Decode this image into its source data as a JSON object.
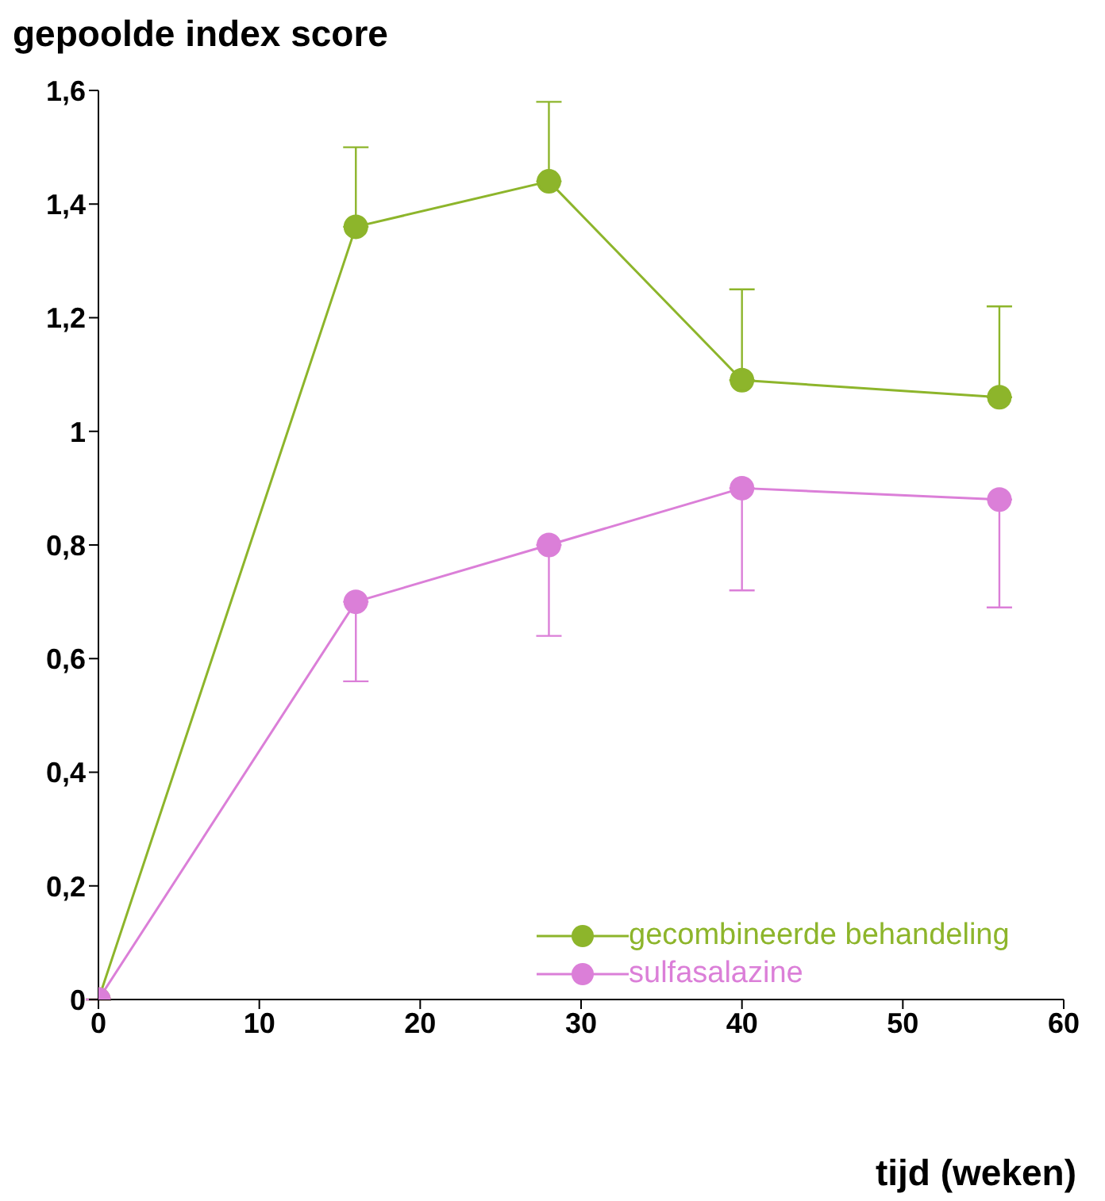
{
  "chart_data": {
    "type": "line",
    "ylabel": "gepoolde index score",
    "xlabel": "tijd (weken)",
    "x": [
      0,
      16,
      28,
      40,
      56
    ],
    "series": [
      {
        "name": "gecombineerde behandeling",
        "color": "#8db52b",
        "values": [
          0,
          1.36,
          1.44,
          1.09,
          1.06
        ],
        "errors": [
          null,
          [
            1.36,
            1.5
          ],
          [
            1.44,
            1.58
          ],
          [
            1.09,
            1.25
          ],
          [
            1.06,
            1.22
          ]
        ]
      },
      {
        "name": "sulfasalazine",
        "color": "#db7fd8",
        "values": [
          0,
          0.7,
          0.8,
          0.9,
          0.88
        ],
        "errors": [
          null,
          [
            0.56,
            0.7
          ],
          [
            0.64,
            0.8
          ],
          [
            0.72,
            0.9
          ],
          [
            0.69,
            0.88
          ]
        ]
      }
    ],
    "xlim": [
      0,
      60
    ],
    "xticks": [
      0,
      10,
      20,
      30,
      40,
      50,
      60
    ],
    "ylim": [
      0,
      1.6
    ],
    "yticks": [
      0,
      {
        "value": 0.2,
        "label": "0,2"
      },
      {
        "value": 0.4,
        "label": "0,4"
      },
      {
        "value": 0.6,
        "label": "0,6"
      },
      {
        "value": 0.8,
        "label": "0,8"
      },
      1,
      {
        "value": 1.2,
        "label": "1,2"
      },
      {
        "value": 1.4,
        "label": "1,4"
      },
      {
        "value": 1.6,
        "label": "1,6"
      }
    ],
    "grid": false,
    "legend": "bottom right",
    "marker": "circle",
    "line_style": "solid"
  }
}
